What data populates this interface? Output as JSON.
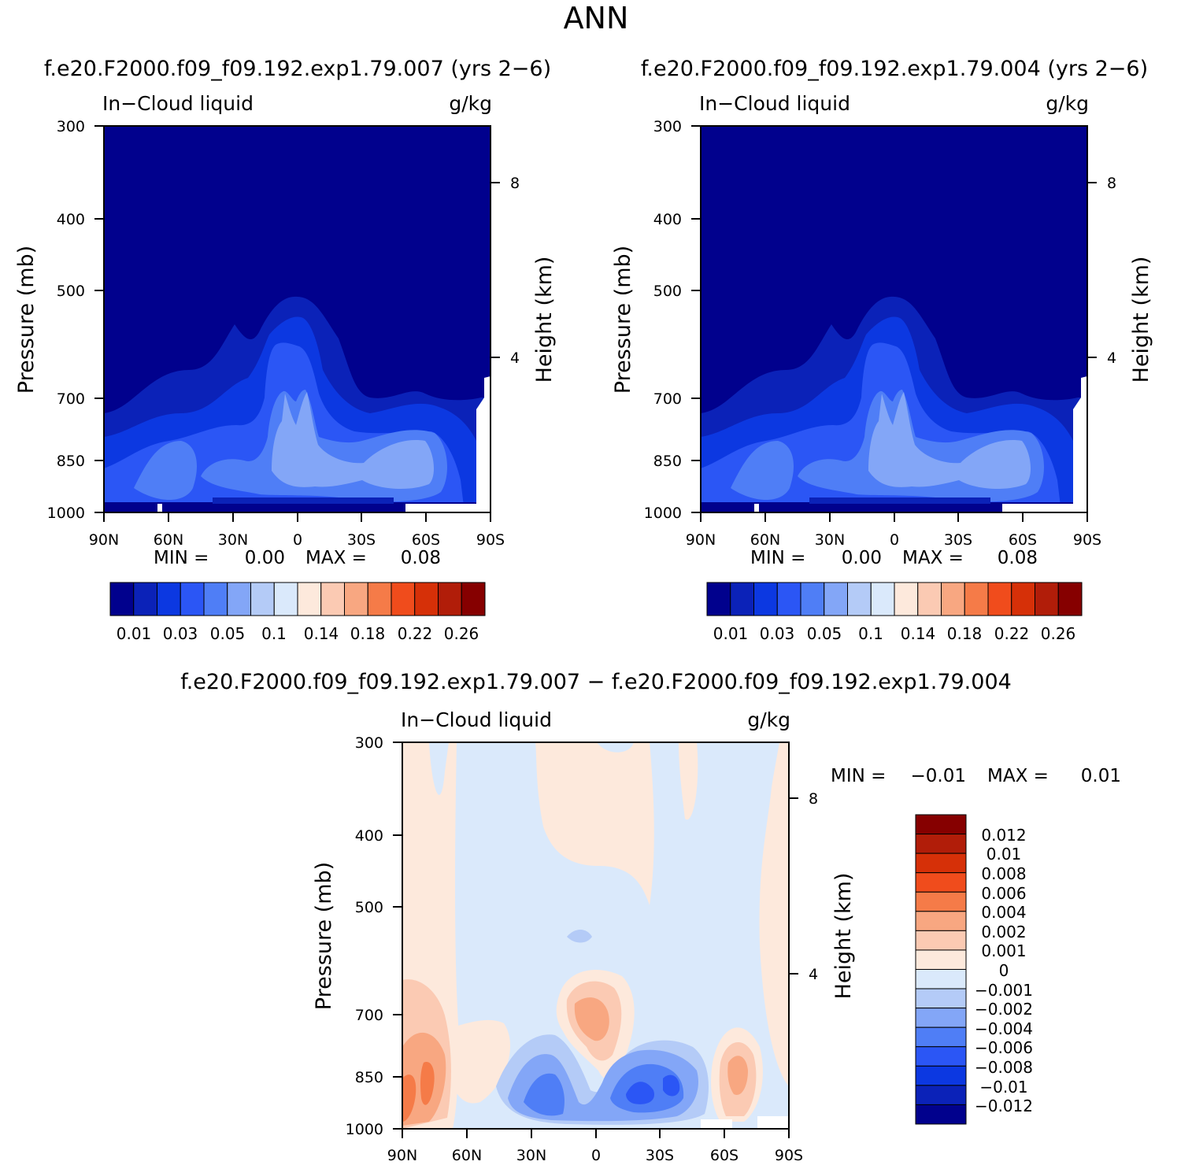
{
  "figure_title": "ANN",
  "chart_data": [
    {
      "type": "heatmap",
      "panel": "top-left",
      "title": "f.e20.F2000.f09_f09.192.exp1.79.007 (yrs 2−6)",
      "left_label": "In−Cloud liquid",
      "right_label": "g/kg",
      "xlabel": "",
      "ylabel": "Pressure (mb)",
      "y2label": "Height (km)",
      "x_ticks": [
        "90N",
        "60N",
        "30N",
        "0",
        "30S",
        "60S",
        "90S"
      ],
      "y_ticks": [
        300,
        400,
        500,
        700,
        850,
        1000
      ],
      "y_tick_labels": [
        "300",
        "400",
        "500",
        "700",
        "850",
        "1000"
      ],
      "y2_ticks": [
        8,
        4
      ],
      "y2_tick_labels": [
        "8",
        "4"
      ],
      "ylim": [
        1000,
        300
      ],
      "min_label": "MIN =",
      "min_value": "0.00",
      "max_label": "MAX =",
      "max_value": "0.08",
      "levels": [
        0.01,
        0.02,
        0.03,
        0.04,
        0.05,
        0.08,
        0.1,
        0.12,
        0.14,
        0.16,
        0.18,
        0.2,
        0.22,
        0.24,
        0.26
      ],
      "colorbar_labels": [
        "0.01",
        "0.03",
        "0.05",
        "0.1",
        "0.14",
        "0.18",
        "0.22",
        "0.26"
      ],
      "colorbar_colors": [
        "#01018d",
        "#0b22b8",
        "#0c38e1",
        "#2b56f5",
        "#4f7ef6",
        "#83a6f7",
        "#b4cbf7",
        "#dae9fb",
        "#fde9dc",
        "#fbcab3",
        "#f8a781",
        "#f57b48",
        "#f04c1c",
        "#d63008",
        "#b11d09",
        "#860000"
      ]
    },
    {
      "type": "heatmap",
      "panel": "top-right",
      "title": "f.e20.F2000.f09_f09.192.exp1.79.004 (yrs 2−6)",
      "left_label": "In−Cloud liquid",
      "right_label": "g/kg",
      "xlabel": "",
      "ylabel": "Pressure (mb)",
      "y2label": "Height (km)",
      "x_ticks": [
        "90N",
        "60N",
        "30N",
        "0",
        "30S",
        "60S",
        "90S"
      ],
      "y_ticks": [
        300,
        400,
        500,
        700,
        850,
        1000
      ],
      "y_tick_labels": [
        "300",
        "400",
        "500",
        "700",
        "850",
        "1000"
      ],
      "y2_ticks": [
        8,
        4
      ],
      "y2_tick_labels": [
        "8",
        "4"
      ],
      "ylim": [
        1000,
        300
      ],
      "min_label": "MIN =",
      "min_value": "0.00",
      "max_label": "MAX =",
      "max_value": "0.08",
      "levels": [
        0.01,
        0.02,
        0.03,
        0.04,
        0.05,
        0.08,
        0.1,
        0.12,
        0.14,
        0.16,
        0.18,
        0.2,
        0.22,
        0.24,
        0.26
      ],
      "colorbar_labels": [
        "0.01",
        "0.03",
        "0.05",
        "0.1",
        "0.14",
        "0.18",
        "0.22",
        "0.26"
      ],
      "colorbar_colors": [
        "#01018d",
        "#0b22b8",
        "#0c38e1",
        "#2b56f5",
        "#4f7ef6",
        "#83a6f7",
        "#b4cbf7",
        "#dae9fb",
        "#fde9dc",
        "#fbcab3",
        "#f8a781",
        "#f57b48",
        "#f04c1c",
        "#d63008",
        "#b11d09",
        "#860000"
      ]
    },
    {
      "type": "heatmap",
      "panel": "bottom-difference",
      "title": "f.e20.F2000.f09_f09.192.exp1.79.007 − f.e20.F2000.f09_f09.192.exp1.79.004",
      "left_label": "In−Cloud liquid",
      "right_label": "g/kg",
      "xlabel": "",
      "ylabel": "Pressure (mb)",
      "y2label": "Height (km)",
      "x_ticks": [
        "90N",
        "60N",
        "30N",
        "0",
        "30S",
        "60S",
        "90S"
      ],
      "y_ticks": [
        300,
        400,
        500,
        700,
        850,
        1000
      ],
      "y_tick_labels": [
        "300",
        "400",
        "500",
        "700",
        "850",
        "1000"
      ],
      "y2_ticks": [
        8,
        4
      ],
      "y2_tick_labels": [
        "8",
        "4"
      ],
      "ylim": [
        1000,
        300
      ],
      "min_label": "MIN =",
      "min_value": "−0.01",
      "max_label": "MAX =",
      "max_value": "0.01",
      "levels": [
        -0.012,
        -0.01,
        -0.008,
        -0.006,
        -0.004,
        -0.002,
        -0.001,
        0,
        0.001,
        0.002,
        0.004,
        0.006,
        0.008,
        0.01,
        0.012
      ],
      "colorbar_labels": [
        "0.012",
        "0.01",
        "0.008",
        "0.006",
        "0.004",
        "0.002",
        "0.001",
        "0",
        "−0.001",
        "−0.002",
        "−0.004",
        "−0.006",
        "−0.008",
        "−0.01",
        "−0.012"
      ],
      "colorbar_colors": [
        "#860000",
        "#b11d09",
        "#d63008",
        "#f04c1c",
        "#f57b48",
        "#f8a781",
        "#fbcab3",
        "#fde9dc",
        "#dae9fb",
        "#b4cbf7",
        "#83a6f7",
        "#4f7ef6",
        "#2b56f5",
        "#0c38e1",
        "#0b22b8",
        "#01018d"
      ]
    }
  ]
}
